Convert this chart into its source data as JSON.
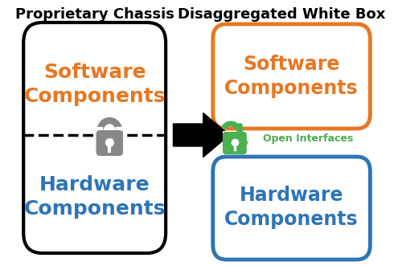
{
  "title_left": "Proprietary Chassis",
  "title_right": "Disaggregated White Box",
  "software_text": "Software\nComponents",
  "hardware_text": "Hardware\nComponents",
  "open_interfaces_text": "Open Interfaces",
  "software_color": "#E87722",
  "hardware_color": "#2E75B6",
  "lock_color": "#888888",
  "green_color": "#4CAF50",
  "box_line_color": "#000000",
  "title_fontsize": 13,
  "component_fontsize": 15,
  "small_fontsize": 9,
  "bg_color": "#ffffff"
}
